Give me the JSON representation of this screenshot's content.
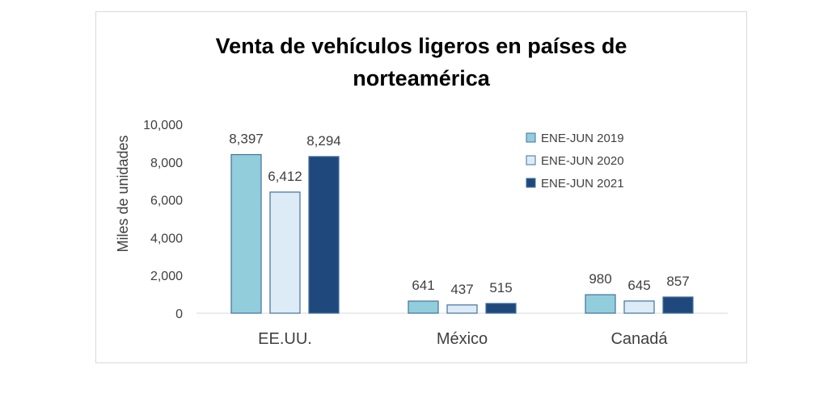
{
  "chart_data": {
    "type": "bar",
    "title_line1": "Venta de vehículos ligeros en países de",
    "title_line2": "norteamérica",
    "ylabel": "Miles de unidades",
    "ylim": [
      0,
      10000
    ],
    "yticks": [
      "0",
      "2,000",
      "4,000",
      "6,000",
      "8,000",
      "10,000"
    ],
    "categories": [
      "EE.UU.",
      "México",
      "Canadá"
    ],
    "series": [
      {
        "name": "ENE-JUN 2019",
        "color": "#92CDDC",
        "values": [
          8397,
          641,
          980
        ],
        "labels": [
          "8,397",
          "641",
          "980"
        ]
      },
      {
        "name": "ENE-JUN 2020",
        "color": "#DDEBF7",
        "values": [
          6412,
          437,
          645
        ],
        "labels": [
          "6,412",
          "437",
          "645"
        ]
      },
      {
        "name": "ENE-JUN 2021",
        "color": "#1F497D",
        "values": [
          8294,
          515,
          857
        ],
        "labels": [
          "8,294",
          "515",
          "857"
        ]
      }
    ],
    "legend": "top-right",
    "grid": false
  }
}
